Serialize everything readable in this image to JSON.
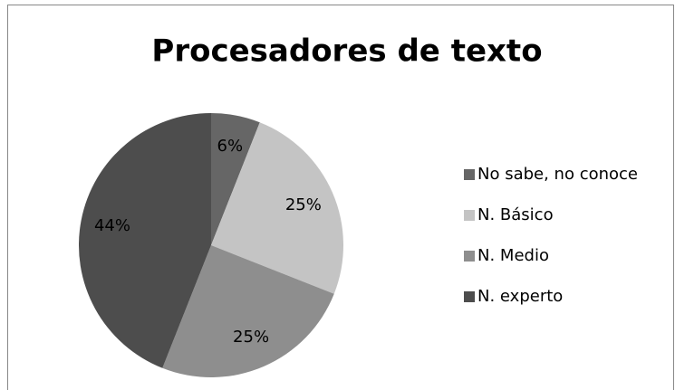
{
  "chart_data": {
    "type": "pie",
    "title": "Procesadores de texto",
    "categories": [
      "No sabe, no conoce",
      "N. Básico",
      "N. Medio",
      "N. experto"
    ],
    "values": [
      6,
      25,
      25,
      44
    ],
    "value_labels": [
      "6%",
      "25%",
      "25%",
      "44%"
    ],
    "colors": [
      "#666666",
      "#c4c4c4",
      "#8e8e8e",
      "#4d4d4d"
    ],
    "legend": "right"
  }
}
